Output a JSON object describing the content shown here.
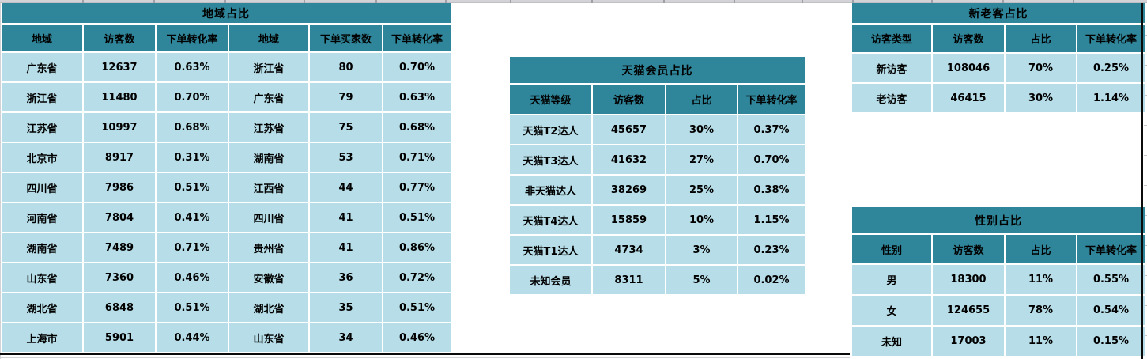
{
  "colors": {
    "header_bg": "#2f8599",
    "row_bg": "#b7dee8",
    "border_black": "#0b0b0b",
    "gridline_gray": "#d2d2d6"
  },
  "tables": {
    "region": {
      "title": "地域占比",
      "headers": [
        "地域",
        "访客数",
        "下单转化率",
        "地域",
        "下单买家数",
        "下单转化率"
      ],
      "rows": [
        [
          "广东省",
          "12637",
          "0.63%",
          "浙江省",
          "80",
          "0.70%"
        ],
        [
          "浙江省",
          "11480",
          "0.70%",
          "广东省",
          "79",
          "0.63%"
        ],
        [
          "江苏省",
          "10997",
          "0.68%",
          "江苏省",
          "75",
          "0.68%"
        ],
        [
          "北京市",
          "8917",
          "0.31%",
          "湖南省",
          "53",
          "0.71%"
        ],
        [
          "四川省",
          "7986",
          "0.51%",
          "江西省",
          "44",
          "0.77%"
        ],
        [
          "河南省",
          "7804",
          "0.41%",
          "四川省",
          "41",
          "0.51%"
        ],
        [
          "湖南省",
          "7489",
          "0.71%",
          "贵州省",
          "41",
          "0.86%"
        ],
        [
          "山东省",
          "7360",
          "0.46%",
          "安徽省",
          "36",
          "0.72%"
        ],
        [
          "湖北省",
          "6848",
          "0.51%",
          "湖北省",
          "35",
          "0.51%"
        ],
        [
          "上海市",
          "5901",
          "0.44%",
          "山东省",
          "34",
          "0.46%"
        ]
      ]
    },
    "tmall": {
      "title": "天猫会员占比",
      "headers": [
        "天猫等级",
        "访客数",
        "占比",
        "下单转化率"
      ],
      "rows": [
        [
          "天猫T2达人",
          "45657",
          "30%",
          "0.37%"
        ],
        [
          "天猫T3达人",
          "41632",
          "27%",
          "0.70%"
        ],
        [
          "非天猫达人",
          "38269",
          "25%",
          "0.38%"
        ],
        [
          "天猫T4达人",
          "15859",
          "10%",
          "1.15%"
        ],
        [
          "天猫T1达人",
          "4734",
          "3%",
          "0.23%"
        ],
        [
          "未知会员",
          "8311",
          "5%",
          "0.02%"
        ]
      ]
    },
    "new_old": {
      "title": "新老客占比",
      "headers": [
        "访客类型",
        "访客数",
        "占比",
        "下单转化率"
      ],
      "rows": [
        [
          "新访客",
          "108046",
          "70%",
          "0.25%"
        ],
        [
          "老访客",
          "46415",
          "30%",
          "1.14%"
        ]
      ]
    },
    "gender": {
      "title": "性别占比",
      "headers": [
        "性别",
        "访客数",
        "占比",
        "下单转化率"
      ],
      "rows": [
        [
          "男",
          "18300",
          "11%",
          "0.55%"
        ],
        [
          "女",
          "124655",
          "78%",
          "0.54%"
        ],
        [
          "未知",
          "17003",
          "11%",
          "0.15%"
        ]
      ]
    }
  }
}
